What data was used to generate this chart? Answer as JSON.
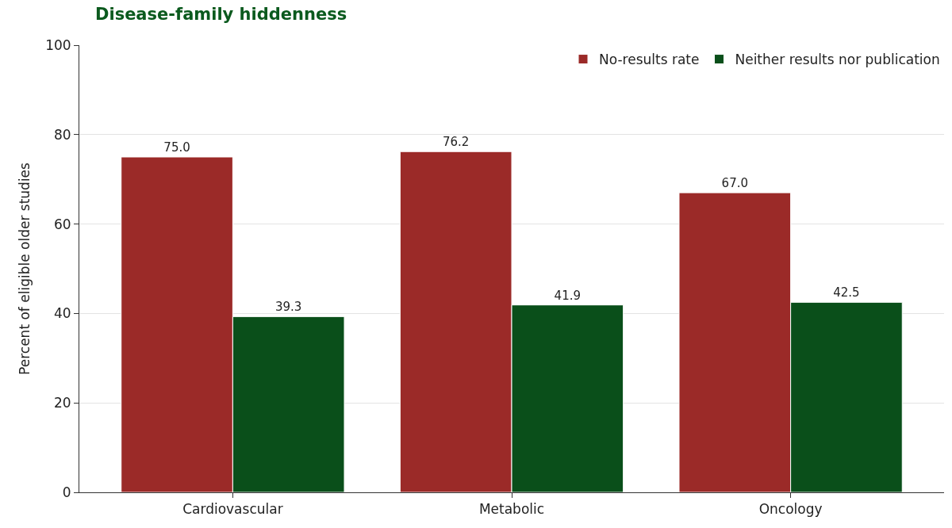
{
  "chart_data": {
    "type": "bar",
    "title": "Disease-family hiddenness",
    "ylabel": "Percent of eligible older studies",
    "categories": [
      "Cardiovascular",
      "Metabolic",
      "Oncology"
    ],
    "series": [
      {
        "name": "No-results rate",
        "color": "#9b2a28",
        "values": [
          75.0,
          76.2,
          67.0
        ],
        "value_labels": [
          "75.0",
          "76.2",
          "67.0"
        ]
      },
      {
        "name": "Neither results nor publication",
        "color": "#0a4f1a",
        "values": [
          39.3,
          41.9,
          42.5
        ],
        "value_labels": [
          "39.3",
          "41.9",
          "42.5"
        ]
      }
    ],
    "ylim": [
      0,
      100
    ],
    "yticks": [
      0,
      20,
      40,
      60,
      80,
      100
    ],
    "grid": "y",
    "legend": "top right"
  }
}
